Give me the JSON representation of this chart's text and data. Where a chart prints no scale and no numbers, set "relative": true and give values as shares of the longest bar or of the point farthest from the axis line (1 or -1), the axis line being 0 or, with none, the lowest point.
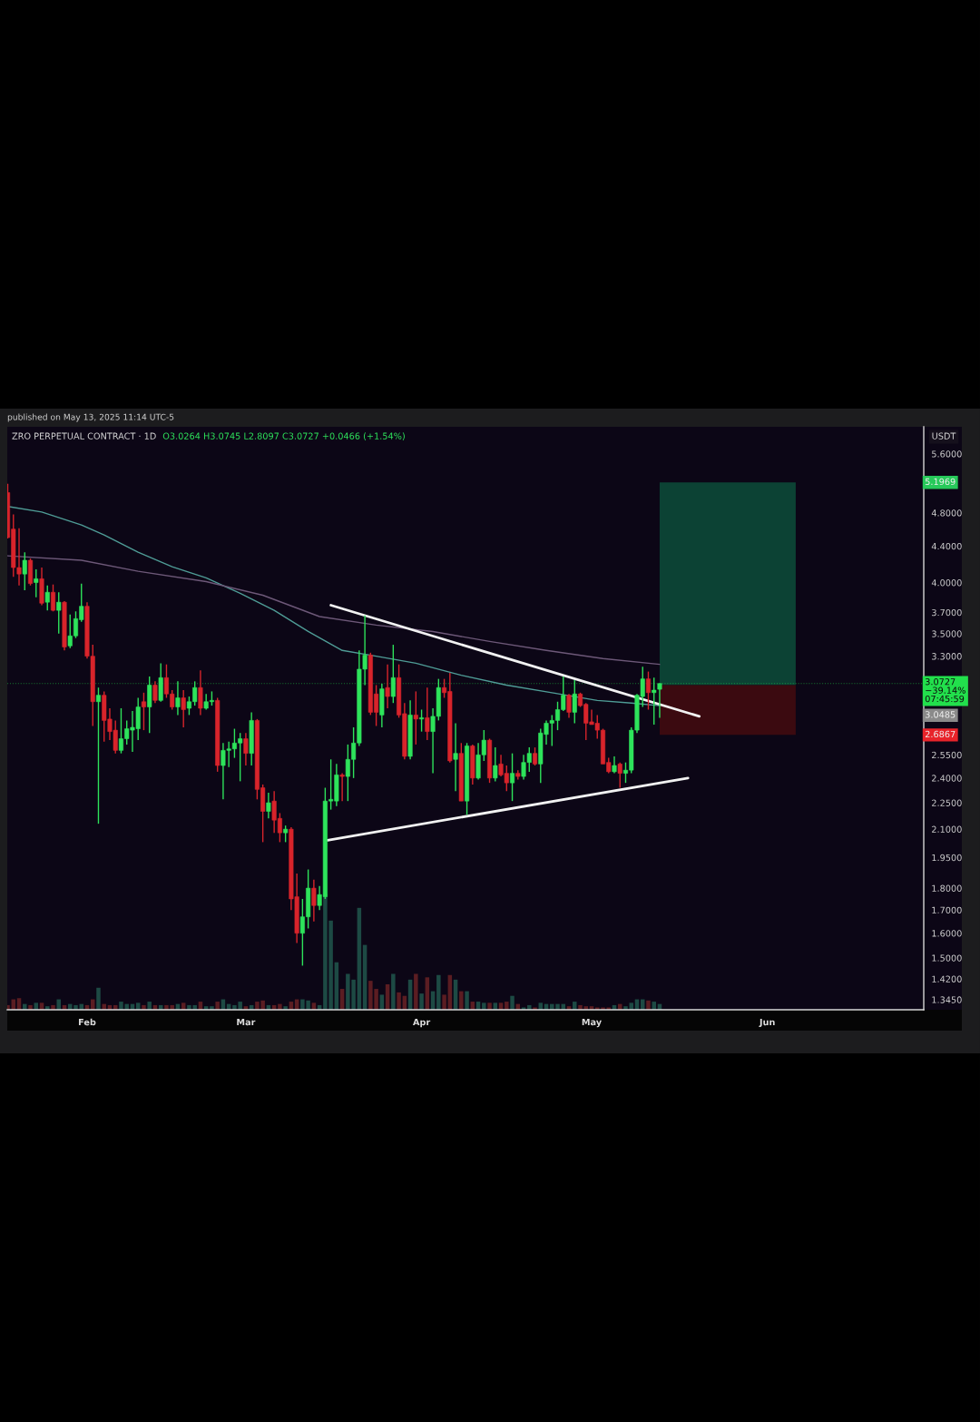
{
  "chart_data": [
    {
      "type": "candlestick",
      "title": "ZRO PERPETUAL CONTRACT · 1D",
      "subtitle": "O3.0264 H3.0745 L2.8097 C3.0727 +0.0466 (+1.54%)",
      "ylabel": "USDT",
      "log": true,
      "xlim": [
        "2025-01-17T22:00",
        "2025-06-28T14:00"
      ],
      "ylim": [
        1.31,
        6.01
      ],
      "xticks": [
        {
          "value": "2025-02-01",
          "label": "Feb"
        },
        {
          "value": "2025-03-01",
          "label": "Mar"
        },
        {
          "value": "2025-04-01",
          "label": "Apr"
        },
        {
          "value": "2025-05-01",
          "label": "May"
        },
        {
          "value": "2025-06-01",
          "label": "Jun"
        }
      ],
      "yticks": [
        {
          "value": 5.6,
          "label": "5.6000"
        },
        {
          "value": 4.8,
          "label": "4.8000"
        },
        {
          "value": 4.4,
          "label": "4.4000"
        },
        {
          "value": 4.0,
          "label": "4.0000"
        },
        {
          "value": 3.7,
          "label": "3.7000"
        },
        {
          "value": 3.5,
          "label": "3.5000"
        },
        {
          "value": 3.3,
          "label": "3.3000"
        },
        {
          "value": 2.55,
          "label": "2.5500"
        },
        {
          "value": 2.4,
          "label": "2.4000"
        },
        {
          "value": 2.25,
          "label": "2.2500"
        },
        {
          "value": 2.1,
          "label": "2.1000"
        },
        {
          "value": 1.95,
          "label": "1.9500"
        },
        {
          "value": 1.8,
          "label": "1.8000"
        },
        {
          "value": 1.7,
          "label": "1.7000"
        },
        {
          "value": 1.6,
          "label": "1.6000"
        },
        {
          "value": 1.5,
          "label": "1.5000"
        },
        {
          "value": 1.42,
          "label": "1.4200"
        },
        {
          "value": 1.345,
          "label": "1.3450"
        }
      ],
      "x": [
        "2025-01-18",
        "2025-01-19",
        "2025-01-20",
        "2025-01-21",
        "2025-01-22",
        "2025-01-23",
        "2025-01-24",
        "2025-01-25",
        "2025-01-26",
        "2025-01-27",
        "2025-01-28",
        "2025-01-29",
        "2025-01-30",
        "2025-01-31",
        "2025-02-01",
        "2025-02-02",
        "2025-02-03",
        "2025-02-04",
        "2025-02-05",
        "2025-02-06",
        "2025-02-07",
        "2025-02-08",
        "2025-02-09",
        "2025-02-10",
        "2025-02-11",
        "2025-02-12",
        "2025-02-13",
        "2025-02-14",
        "2025-02-15",
        "2025-02-16",
        "2025-02-17",
        "2025-02-18",
        "2025-02-19",
        "2025-02-20",
        "2025-02-21",
        "2025-02-22",
        "2025-02-23",
        "2025-02-24",
        "2025-02-25",
        "2025-02-26",
        "2025-02-27",
        "2025-02-28",
        "2025-03-01",
        "2025-03-02",
        "2025-03-03",
        "2025-03-04",
        "2025-03-05",
        "2025-03-06",
        "2025-03-07",
        "2025-03-08",
        "2025-03-09",
        "2025-03-10",
        "2025-03-11",
        "2025-03-12",
        "2025-03-13",
        "2025-03-14",
        "2025-03-15",
        "2025-03-16",
        "2025-03-17",
        "2025-03-18",
        "2025-03-19",
        "2025-03-20",
        "2025-03-21",
        "2025-03-22",
        "2025-03-23",
        "2025-03-24",
        "2025-03-25",
        "2025-03-26",
        "2025-03-27",
        "2025-03-28",
        "2025-03-29",
        "2025-03-30",
        "2025-03-31",
        "2025-04-01",
        "2025-04-02",
        "2025-04-03",
        "2025-04-04",
        "2025-04-05",
        "2025-04-06",
        "2025-04-07",
        "2025-04-08",
        "2025-04-09",
        "2025-04-10",
        "2025-04-11",
        "2025-04-12",
        "2025-04-13",
        "2025-04-14",
        "2025-04-15",
        "2025-04-16",
        "2025-04-17",
        "2025-04-18",
        "2025-04-19",
        "2025-04-20",
        "2025-04-21",
        "2025-04-22",
        "2025-04-23",
        "2025-04-24",
        "2025-04-25",
        "2025-04-26",
        "2025-04-27",
        "2025-04-28",
        "2025-04-29",
        "2025-04-30",
        "2025-05-01",
        "2025-05-02",
        "2025-05-03",
        "2025-05-04",
        "2025-05-05",
        "2025-05-06",
        "2025-05-07",
        "2025-05-08",
        "2025-05-09",
        "2025-05-10",
        "2025-05-11",
        "2025-05-12",
        "2025-05-13"
      ],
      "ohlc": [
        [
          5.06,
          5.18,
          4.49,
          4.5
        ],
        [
          4.6,
          4.78,
          4.06,
          4.16
        ],
        [
          4.16,
          4.61,
          3.97,
          4.09
        ],
        [
          4.09,
          4.33,
          3.92,
          4.24
        ],
        [
          4.24,
          4.26,
          3.97,
          3.99
        ],
        [
          4.0,
          4.14,
          3.85,
          4.04
        ],
        [
          4.04,
          4.16,
          3.77,
          3.79
        ],
        [
          3.8,
          3.97,
          3.72,
          3.9
        ],
        [
          3.9,
          3.98,
          3.71,
          3.72
        ],
        [
          3.72,
          3.9,
          3.5,
          3.8
        ],
        [
          3.8,
          3.81,
          3.35,
          3.38
        ],
        [
          3.39,
          3.68,
          3.37,
          3.48
        ],
        [
          3.48,
          3.71,
          3.46,
          3.64
        ],
        [
          3.63,
          3.99,
          3.61,
          3.76
        ],
        [
          3.76,
          3.8,
          3.28,
          3.3
        ],
        [
          3.3,
          3.4,
          2.75,
          2.93
        ],
        [
          2.93,
          3.04,
          2.13,
          2.98
        ],
        [
          2.98,
          3.01,
          2.64,
          2.79
        ],
        [
          2.8,
          2.88,
          2.65,
          2.71
        ],
        [
          2.72,
          2.79,
          2.56,
          2.58
        ],
        [
          2.58,
          2.88,
          2.56,
          2.66
        ],
        [
          2.66,
          2.79,
          2.62,
          2.73
        ],
        [
          2.72,
          2.86,
          2.57,
          2.74
        ],
        [
          2.73,
          2.96,
          2.65,
          2.89
        ],
        [
          2.93,
          3.0,
          2.72,
          2.89
        ],
        [
          2.89,
          3.13,
          2.7,
          3.06
        ],
        [
          3.06,
          3.09,
          2.92,
          2.94
        ],
        [
          2.94,
          3.24,
          2.93,
          3.12
        ],
        [
          3.12,
          3.23,
          2.96,
          2.99
        ],
        [
          2.99,
          3.02,
          2.87,
          2.89
        ],
        [
          2.89,
          3.09,
          2.83,
          2.96
        ],
        [
          2.96,
          3.02,
          2.74,
          2.87
        ],
        [
          2.88,
          2.97,
          2.83,
          2.93
        ],
        [
          2.93,
          3.09,
          2.9,
          3.04
        ],
        [
          3.04,
          3.18,
          2.83,
          2.88
        ],
        [
          2.88,
          2.99,
          2.87,
          2.93
        ],
        [
          2.93,
          3.01,
          2.9,
          2.94
        ],
        [
          2.94,
          2.96,
          2.44,
          2.48
        ],
        [
          2.48,
          2.63,
          2.27,
          2.58
        ],
        [
          2.58,
          2.64,
          2.47,
          2.59
        ],
        [
          2.59,
          2.73,
          2.53,
          2.63
        ],
        [
          2.63,
          2.7,
          2.38,
          2.66
        ],
        [
          2.66,
          2.7,
          2.48,
          2.56
        ],
        [
          2.56,
          2.85,
          2.48,
          2.79
        ],
        [
          2.79,
          2.8,
          2.27,
          2.33
        ],
        [
          2.34,
          2.36,
          2.03,
          2.2
        ],
        [
          2.2,
          2.31,
          2.16,
          2.25
        ],
        [
          2.26,
          2.32,
          2.08,
          2.15
        ],
        [
          2.16,
          2.19,
          2.03,
          2.08
        ],
        [
          2.08,
          2.12,
          2.03,
          2.1
        ],
        [
          2.1,
          2.11,
          1.7,
          1.75
        ],
        [
          1.76,
          1.87,
          1.56,
          1.6
        ],
        [
          1.6,
          1.75,
          1.47,
          1.67
        ],
        [
          1.67,
          1.89,
          1.62,
          1.8
        ],
        [
          1.8,
          1.84,
          1.65,
          1.72
        ],
        [
          1.72,
          1.81,
          1.7,
          1.77
        ],
        [
          1.76,
          2.34,
          1.75,
          2.26
        ],
        [
          2.26,
          2.52,
          2.21,
          2.27
        ],
        [
          2.26,
          2.49,
          2.23,
          2.42
        ],
        [
          2.42,
          2.43,
          2.26,
          2.41
        ],
        [
          2.41,
          2.62,
          2.26,
          2.52
        ],
        [
          2.52,
          2.74,
          2.4,
          2.63
        ],
        [
          2.63,
          3.35,
          2.61,
          3.19
        ],
        [
          3.19,
          3.67,
          3.06,
          3.31
        ],
        [
          3.31,
          3.33,
          2.83,
          2.85
        ],
        [
          2.99,
          3.06,
          2.75,
          2.85
        ],
        [
          2.83,
          3.07,
          2.74,
          3.03
        ],
        [
          3.04,
          3.23,
          2.88,
          2.97
        ],
        [
          2.97,
          3.4,
          2.92,
          3.12
        ],
        [
          3.12,
          3.23,
          2.81,
          2.83
        ],
        [
          2.84,
          2.92,
          2.52,
          2.54
        ],
        [
          2.54,
          2.94,
          2.52,
          2.83
        ],
        [
          2.83,
          3.01,
          2.62,
          2.8
        ],
        [
          2.8,
          2.87,
          2.71,
          2.81
        ],
        [
          2.81,
          3.04,
          2.65,
          2.71
        ],
        [
          2.71,
          2.88,
          2.43,
          2.82
        ],
        [
          2.82,
          3.11,
          2.79,
          3.04
        ],
        [
          3.04,
          3.11,
          2.96,
          3.0
        ],
        [
          3.01,
          3.16,
          2.5,
          2.51
        ],
        [
          2.52,
          2.77,
          2.32,
          2.56
        ],
        [
          2.56,
          2.63,
          2.26,
          2.26
        ],
        [
          2.26,
          2.63,
          2.18,
          2.61
        ],
        [
          2.61,
          2.62,
          2.36,
          2.4
        ],
        [
          2.4,
          2.63,
          2.39,
          2.55
        ],
        [
          2.55,
          2.72,
          2.51,
          2.65
        ],
        [
          2.65,
          2.66,
          2.37,
          2.4
        ],
        [
          2.4,
          2.6,
          2.38,
          2.48
        ],
        [
          2.49,
          2.55,
          2.41,
          2.42
        ],
        [
          2.43,
          2.48,
          2.32,
          2.37
        ],
        [
          2.37,
          2.56,
          2.26,
          2.43
        ],
        [
          2.43,
          2.45,
          2.39,
          2.41
        ],
        [
          2.41,
          2.55,
          2.39,
          2.5
        ],
        [
          2.5,
          2.6,
          2.44,
          2.56
        ],
        [
          2.56,
          2.6,
          2.48,
          2.49
        ],
        [
          2.49,
          2.73,
          2.37,
          2.7
        ],
        [
          2.69,
          2.79,
          2.62,
          2.77
        ],
        [
          2.77,
          2.83,
          2.61,
          2.79
        ],
        [
          2.79,
          2.93,
          2.72,
          2.87
        ],
        [
          2.87,
          3.13,
          2.86,
          2.98
        ],
        [
          2.98,
          2.99,
          2.81,
          2.85
        ],
        [
          2.85,
          3.1,
          2.77,
          2.99
        ],
        [
          2.99,
          3.0,
          2.89,
          2.9
        ],
        [
          2.91,
          2.92,
          2.65,
          2.77
        ],
        [
          2.78,
          2.87,
          2.76,
          2.76
        ],
        [
          2.77,
          2.83,
          2.66,
          2.72
        ],
        [
          2.72,
          2.73,
          2.49,
          2.49
        ],
        [
          2.5,
          2.53,
          2.43,
          2.44
        ],
        [
          2.44,
          2.54,
          2.43,
          2.48
        ],
        [
          2.49,
          2.5,
          2.34,
          2.43
        ],
        [
          2.43,
          2.5,
          2.37,
          2.45
        ],
        [
          2.45,
          2.74,
          2.43,
          2.72
        ],
        [
          2.72,
          2.99,
          2.7,
          2.98
        ],
        [
          2.97,
          3.21,
          2.89,
          3.11
        ],
        [
          3.11,
          3.17,
          2.87,
          3.0
        ],
        [
          3.0,
          3.12,
          2.76,
          3.02
        ],
        [
          3.0264,
          3.0745,
          2.8097,
          3.0727
        ]
      ],
      "colors": [
        "#d8242b",
        "#d8242b",
        "#d8242b",
        "#2ee35b",
        "#d8242b",
        "#2ee35b",
        "#d8242b",
        "#2ee35b",
        "#d8242b",
        "#2ee35b",
        "#d8242b",
        "#2ee35b",
        "#2ee35b",
        "#2ee35b",
        "#d8242b",
        "#d8242b",
        "#2ee35b",
        "#d8242b",
        "#d8242b",
        "#d8242b",
        "#2ee35b",
        "#2ee35b",
        "#2ee35b",
        "#2ee35b",
        "#d8242b",
        "#2ee35b",
        "#d8242b",
        "#2ee35b",
        "#d8242b",
        "#d8242b",
        "#2ee35b",
        "#d8242b",
        "#2ee35b",
        "#2ee35b",
        "#d8242b",
        "#2ee35b",
        "#2ee35b",
        "#d8242b",
        "#2ee35b",
        "#2ee35b",
        "#2ee35b",
        "#2ee35b",
        "#d8242b",
        "#2ee35b",
        "#d8242b",
        "#d8242b",
        "#2ee35b",
        "#d8242b",
        "#d8242b",
        "#2ee35b",
        "#d8242b",
        "#d8242b",
        "#2ee35b",
        "#2ee35b",
        "#d8242b",
        "#2ee35b",
        "#2ee35b",
        "#2ee35b",
        "#2ee35b",
        "#d8242b",
        "#2ee35b",
        "#2ee35b",
        "#2ee35b",
        "#2ee35b",
        "#d8242b",
        "#d8242b",
        "#2ee35b",
        "#d8242b",
        "#2ee35b",
        "#d8242b",
        "#d8242b",
        "#2ee35b",
        "#d8242b",
        "#2ee35b",
        "#d8242b",
        "#2ee35b",
        "#2ee35b",
        "#d8242b",
        "#d8242b",
        "#2ee35b",
        "#d8242b",
        "#2ee35b",
        "#d8242b",
        "#2ee35b",
        "#2ee35b",
        "#d8242b",
        "#2ee35b",
        "#d8242b",
        "#d8242b",
        "#2ee35b",
        "#d8242b",
        "#2ee35b",
        "#2ee35b",
        "#d8242b",
        "#2ee35b",
        "#2ee35b",
        "#2ee35b",
        "#2ee35b",
        "#2ee35b",
        "#d8242b",
        "#2ee35b",
        "#d8242b",
        "#d8242b",
        "#d8242b",
        "#d8242b",
        "#d8242b",
        "#d8242b",
        "#2ee35b",
        "#d8242b",
        "#2ee35b",
        "#2ee35b",
        "#2ee35b",
        "#2ee35b",
        "#d8242b",
        "#2ee35b",
        "#2ee35b"
      ],
      "series": [
        {
          "type": "bar",
          "x": [
            "2025-05-25"
          ],
          "base": [
            3.06
          ],
          "values": [
            2.1369
          ],
          "color": "#0c4234"
        },
        {
          "type": "bar",
          "x": [
            "2025-05-25"
          ],
          "base": [
            2.6867
          ],
          "values": [
            0.3733
          ],
          "color": "#3b0a10"
        },
        {
          "type": "line",
          "x": [
            "2025-01-18",
            "2025-01-24",
            "2025-01-31",
            "2025-02-04",
            "2025-02-10",
            "2025-02-16",
            "2025-02-22",
            "2025-02-28",
            "2025-03-06",
            "2025-03-12",
            "2025-03-18",
            "2025-03-24",
            "2025-03-31",
            "2025-04-08",
            "2025-04-16",
            "2025-04-24",
            "2025-05-02",
            "2025-05-08",
            "2025-05-13"
          ],
          "values": [
            4.88,
            4.81,
            4.65,
            4.53,
            4.33,
            4.17,
            4.05,
            3.89,
            3.72,
            3.52,
            3.35,
            3.3,
            3.24,
            3.14,
            3.06,
            3.0,
            2.94,
            2.92,
            2.9
          ],
          "color": "#4f9c96"
        },
        {
          "type": "line",
          "x": [
            "2025-01-18",
            "2025-01-31",
            "2025-02-10",
            "2025-02-22",
            "2025-03-04",
            "2025-03-14",
            "2025-03-24",
            "2025-04-03",
            "2025-04-13",
            "2025-04-23",
            "2025-05-03",
            "2025-05-13"
          ],
          "values": [
            4.29,
            4.24,
            4.12,
            4.01,
            3.87,
            3.66,
            3.58,
            3.52,
            3.43,
            3.35,
            3.28,
            3.23
          ],
          "color": "#6d5878"
        },
        {
          "type": "line",
          "x": [
            "2025-03-16",
            "2025-05-20"
          ],
          "values": [
            3.77,
            2.82
          ],
          "color": "#f2f2f2"
        },
        {
          "type": "line",
          "x": [
            "2025-03-15T10:00",
            "2025-05-18"
          ],
          "values": [
            2.04,
            2.4
          ],
          "color": "#f2f2f2"
        }
      ],
      "ref_lines": [
        {
          "axis": "y",
          "value": 3.0727,
          "label": "3.0727\n−39.14%\n07:45:59",
          "color": "#22e04c",
          "line_style": "dotted"
        }
      ],
      "annotations": [
        "published on May 13, 2025 11:14 UTC-5",
        {
          "text": "5.1969",
          "y": 5.1969
        },
        "3.0485",
        {
          "text": "2.6867",
          "y": 2.6867
        }
      ]
    },
    {
      "type": "bar",
      "relative": true,
      "xlim": [
        "2025-01-17T22:00",
        "2025-06-28T14:00"
      ],
      "x": [
        "2025-01-18",
        "2025-01-19",
        "2025-01-20",
        "2025-01-21",
        "2025-01-22",
        "2025-01-23",
        "2025-01-24",
        "2025-01-25",
        "2025-01-26",
        "2025-01-27",
        "2025-01-28",
        "2025-01-29",
        "2025-01-30",
        "2025-01-31",
        "2025-02-01",
        "2025-02-02",
        "2025-02-03",
        "2025-02-04",
        "2025-02-05",
        "2025-02-06",
        "2025-02-07",
        "2025-02-08",
        "2025-02-09",
        "2025-02-10",
        "2025-02-11",
        "2025-02-12",
        "2025-02-13",
        "2025-02-14",
        "2025-02-15",
        "2025-02-16",
        "2025-02-17",
        "2025-02-18",
        "2025-02-19",
        "2025-02-20",
        "2025-02-21",
        "2025-02-22",
        "2025-02-23",
        "2025-02-24",
        "2025-02-25",
        "2025-02-26",
        "2025-02-27",
        "2025-02-28",
        "2025-03-01",
        "2025-03-02",
        "2025-03-03",
        "2025-03-04",
        "2025-03-05",
        "2025-03-06",
        "2025-03-07",
        "2025-03-08",
        "2025-03-09",
        "2025-03-10",
        "2025-03-11",
        "2025-03-12",
        "2025-03-13",
        "2025-03-14",
        "2025-03-15",
        "2025-03-16",
        "2025-03-17",
        "2025-03-18",
        "2025-03-19",
        "2025-03-20",
        "2025-03-21",
        "2025-03-22",
        "2025-03-23",
        "2025-03-24",
        "2025-03-25",
        "2025-03-26",
        "2025-03-27",
        "2025-03-28",
        "2025-03-29",
        "2025-03-30",
        "2025-03-31",
        "2025-04-01",
        "2025-04-02",
        "2025-04-03",
        "2025-04-04",
        "2025-04-05",
        "2025-04-06",
        "2025-04-07",
        "2025-04-08",
        "2025-04-09",
        "2025-04-10",
        "2025-04-11",
        "2025-04-12",
        "2025-04-13",
        "2025-04-14",
        "2025-04-15",
        "2025-04-16",
        "2025-04-17",
        "2025-04-18",
        "2025-04-19",
        "2025-04-20",
        "2025-04-21",
        "2025-04-22",
        "2025-04-23",
        "2025-04-24",
        "2025-04-25",
        "2025-04-26",
        "2025-04-27",
        "2025-04-28",
        "2025-04-29",
        "2025-04-30",
        "2025-05-01",
        "2025-05-02",
        "2025-05-03",
        "2025-05-04",
        "2025-05-05",
        "2025-05-06",
        "2025-05-07",
        "2025-05-08",
        "2025-05-09",
        "2025-05-10",
        "2025-05-11",
        "2025-05-12",
        "2025-05-13"
      ],
      "values": [
        0.04,
        0.09,
        0.1,
        0.05,
        0.04,
        0.06,
        0.06,
        0.03,
        0.04,
        0.09,
        0.04,
        0.05,
        0.04,
        0.05,
        0.04,
        0.09,
        0.19,
        0.05,
        0.04,
        0.04,
        0.07,
        0.05,
        0.05,
        0.06,
        0.04,
        0.07,
        0.04,
        0.04,
        0.04,
        0.04,
        0.05,
        0.06,
        0.04,
        0.04,
        0.07,
        0.03,
        0.03,
        0.07,
        0.09,
        0.05,
        0.04,
        0.07,
        0.03,
        0.04,
        0.07,
        0.08,
        0.04,
        0.04,
        0.05,
        0.03,
        0.07,
        0.09,
        0.09,
        0.08,
        0.06,
        0.04,
        1,
        0.77,
        0.41,
        0.18,
        0.31,
        0.26,
        0.88,
        0.56,
        0.25,
        0.18,
        0.13,
        0.22,
        0.31,
        0.15,
        0.12,
        0.26,
        0.31,
        0.14,
        0.28,
        0.16,
        0.3,
        0.13,
        0.3,
        0.26,
        0.16,
        0.16,
        0.07,
        0.07,
        0.06,
        0.06,
        0.06,
        0.06,
        0.07,
        0.12,
        0.05,
        0.02,
        0.04,
        0.02,
        0.06,
        0.05,
        0.05,
        0.05,
        0.05,
        0.03,
        0.07,
        0.04,
        0.03,
        0.03,
        0.02,
        0.02,
        0.02,
        0.04,
        0.05,
        0.03,
        0.06,
        0.09,
        0.09,
        0.08,
        0.07,
        0.05
      ],
      "colors": [
        "#5b1d22",
        "#5b1d22",
        "#5b1d22",
        "#1d4a44",
        "#5b1d22",
        "#1d4a44",
        "#5b1d22",
        "#1d4a44",
        "#5b1d22",
        "#1d4a44",
        "#5b1d22",
        "#1d4a44",
        "#1d4a44",
        "#1d4a44",
        "#5b1d22",
        "#5b1d22",
        "#1d4a44",
        "#5b1d22",
        "#5b1d22",
        "#5b1d22",
        "#1d4a44",
        "#1d4a44",
        "#1d4a44",
        "#1d4a44",
        "#5b1d22",
        "#1d4a44",
        "#5b1d22",
        "#1d4a44",
        "#5b1d22",
        "#5b1d22",
        "#1d4a44",
        "#5b1d22",
        "#1d4a44",
        "#1d4a44",
        "#5b1d22",
        "#1d4a44",
        "#1d4a44",
        "#5b1d22",
        "#1d4a44",
        "#1d4a44",
        "#1d4a44",
        "#1d4a44",
        "#5b1d22",
        "#1d4a44",
        "#5b1d22",
        "#5b1d22",
        "#1d4a44",
        "#5b1d22",
        "#5b1d22",
        "#1d4a44",
        "#5b1d22",
        "#5b1d22",
        "#1d4a44",
        "#1d4a44",
        "#5b1d22",
        "#1d4a44",
        "#1d4a44",
        "#1d4a44",
        "#1d4a44",
        "#5b1d22",
        "#1d4a44",
        "#1d4a44",
        "#1d4a44",
        "#1d4a44",
        "#5b1d22",
        "#5b1d22",
        "#1d4a44",
        "#5b1d22",
        "#1d4a44",
        "#5b1d22",
        "#5b1d22",
        "#1d4a44",
        "#5b1d22",
        "#1d4a44",
        "#5b1d22",
        "#1d4a44",
        "#1d4a44",
        "#5b1d22",
        "#5b1d22",
        "#1d4a44",
        "#5b1d22",
        "#1d4a44",
        "#5b1d22",
        "#1d4a44",
        "#1d4a44",
        "#5b1d22",
        "#1d4a44",
        "#5b1d22",
        "#5b1d22",
        "#1d4a44",
        "#5b1d22",
        "#1d4a44",
        "#1d4a44",
        "#5b1d22",
        "#1d4a44",
        "#1d4a44",
        "#1d4a44",
        "#1d4a44",
        "#1d4a44",
        "#5b1d22",
        "#1d4a44",
        "#5b1d22",
        "#5b1d22",
        "#5b1d22",
        "#5b1d22",
        "#5b1d22",
        "#5b1d22",
        "#1d4a44",
        "#5b1d22",
        "#1d4a44",
        "#1d4a44",
        "#1d4a44",
        "#1d4a44",
        "#5b1d22",
        "#1d4a44",
        "#1d4a44"
      ]
    }
  ]
}
